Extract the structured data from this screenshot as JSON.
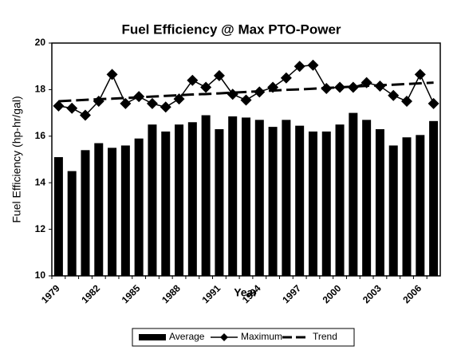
{
  "chart_data": {
    "type": "bar",
    "title": "Fuel Efficiency @ Max PTO-Power",
    "xlabel": "Year",
    "ylabel": "Fuel Efficiency (hp-hr/gal)",
    "categories": [
      "1979",
      null,
      null,
      "1982",
      null,
      null,
      "1985",
      null,
      null,
      "1988",
      null,
      null,
      "1991",
      null,
      null,
      "1994",
      null,
      null,
      "1997",
      null,
      null,
      "2000",
      null,
      null,
      "2003",
      null,
      null,
      "2006",
      null
    ],
    "series": [
      {
        "name": "Average",
        "type": "bar",
        "color": "#000000",
        "values": [
          15.1,
          14.5,
          15.4,
          15.7,
          15.5,
          15.6,
          15.9,
          16.5,
          16.2,
          16.5,
          16.6,
          16.9,
          16.3,
          16.85,
          16.8,
          16.7,
          16.4,
          16.7,
          16.45,
          16.2,
          16.2,
          16.5,
          17.0,
          16.7,
          16.3,
          15.6,
          15.95,
          16.05,
          16.65
        ]
      },
      {
        "name": "Maximum",
        "type": "line",
        "marker": "diamond",
        "color": "#000000",
        "values": [
          17.3,
          17.2,
          16.9,
          17.5,
          18.65,
          17.4,
          17.7,
          17.4,
          17.25,
          17.6,
          18.4,
          18.1,
          18.6,
          17.8,
          17.55,
          17.9,
          18.1,
          18.5,
          19.0,
          19.05,
          18.05,
          18.1,
          18.1,
          18.3,
          18.15,
          17.75,
          17.5,
          18.65,
          17.4
        ]
      },
      {
        "name": "Trend",
        "type": "line",
        "dashed": true,
        "color": "#000000",
        "values": [
          17.5,
          17.53,
          17.56,
          17.59,
          17.61,
          17.64,
          17.67,
          17.7,
          17.73,
          17.76,
          17.79,
          17.81,
          17.84,
          17.87,
          17.9,
          17.93,
          17.96,
          17.99,
          18.01,
          18.04,
          18.07,
          18.1,
          18.13,
          18.16,
          18.19,
          18.21,
          18.24,
          18.27,
          18.3
        ]
      }
    ],
    "ylim": [
      10,
      20
    ],
    "yticks": [
      10,
      12,
      14,
      16,
      18,
      20
    ],
    "legend": "bottom"
  }
}
